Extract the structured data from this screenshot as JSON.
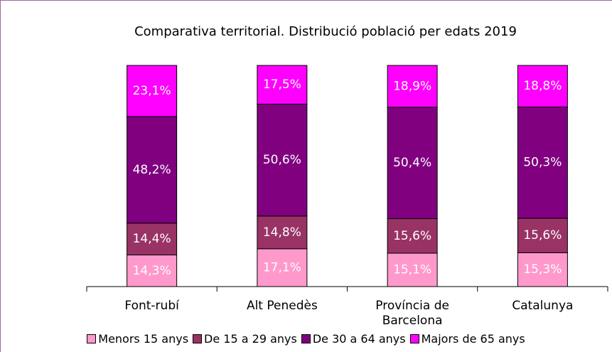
{
  "chart_data": {
    "type": "stacked_bar",
    "title": "Comparativa territorial. Distribució població per edats 2019",
    "categories": [
      "Font-rubí",
      "Alt Penedès",
      "Província de Barcelona",
      "Catalunya"
    ],
    "series": [
      {
        "name": "Menors 15 anys",
        "color": "#ff99cc",
        "values": [
          14.3,
          17.1,
          15.1,
          15.3
        ],
        "value_labels": [
          "14,3%",
          "17,1%",
          "15,1%",
          "15,3%"
        ]
      },
      {
        "name": "De 15 a 29 anys",
        "color": "#993366",
        "values": [
          14.4,
          14.8,
          15.6,
          15.6
        ],
        "value_labels": [
          "14,4%",
          "14,8%",
          "15,6%",
          "15,6%"
        ]
      },
      {
        "name": "De 30 a 64 anys",
        "color": "#800080",
        "values": [
          48.2,
          50.6,
          50.4,
          50.3
        ],
        "value_labels": [
          "48,2%",
          "50,6%",
          "50,4%",
          "50,3%"
        ]
      },
      {
        "name": "Majors de 65 anys",
        "color": "#ff00ff",
        "values": [
          23.1,
          17.5,
          18.9,
          18.8
        ],
        "value_labels": [
          "23,1%",
          "17,5%",
          "18,9%",
          "18,8%"
        ]
      }
    ],
    "ylim": [
      0,
      100
    ],
    "legend": "bottom"
  }
}
